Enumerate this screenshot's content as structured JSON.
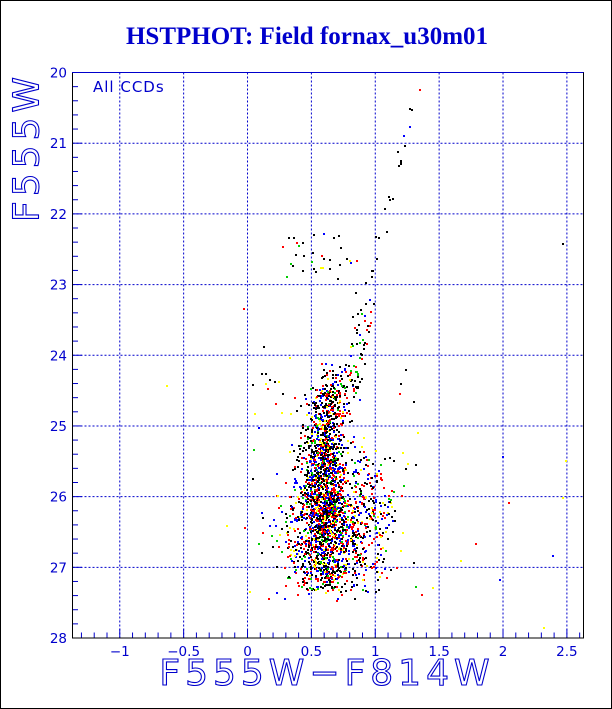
{
  "window": {
    "background": "#ffffff",
    "border_color": "#000000"
  },
  "title": {
    "text": "HSTPHOT: Field fornax_u30m01",
    "color": "#0000cc"
  },
  "annotation": {
    "text": "All CCDs"
  },
  "axes": {
    "accent_color": "#0000cc",
    "frame_color": "#000000",
    "grid_style": "dashed",
    "x": {
      "label": "F555W−F814W",
      "lim": [
        -1.37,
        2.63
      ],
      "major_values": [
        -1,
        -0.5,
        0,
        0.5,
        1,
        1.5,
        2,
        2.5
      ],
      "major_labels": [
        "−1",
        "−0.5",
        "0",
        "0.5",
        "1",
        "1.5",
        "2",
        "2.5"
      ],
      "minor_step": 0.1
    },
    "y": {
      "label": "F555W",
      "lim": [
        20,
        28
      ],
      "inverted": true,
      "major_values": [
        20,
        21,
        22,
        23,
        24,
        25,
        26,
        27,
        28
      ],
      "major_labels": [
        "20",
        "21",
        "22",
        "23",
        "24",
        "25",
        "26",
        "27",
        "28"
      ],
      "minor_step": 0.2
    }
  },
  "chart_data": {
    "type": "scatter",
    "title": "HSTPHOT: Field fornax_u30m01",
    "xlabel": "F555W-F814W",
    "ylabel": "F555W",
    "xlim": [
      -1.37,
      2.63
    ],
    "ylim": [
      28,
      20
    ],
    "grid": true,
    "legend": "none",
    "marker": "2px square",
    "approx_point_count": 2700,
    "palette": [
      "#000000",
      "#ff0000",
      "#0000ff",
      "#00cc00",
      "#ffff00"
    ],
    "seed": 20,
    "clusters": [
      {
        "name": "rgb-tip",
        "shape": "line",
        "from": [
          1.3,
          20.45
        ],
        "to": [
          0.94,
          23.05
        ],
        "n": 20,
        "jitter": [
          0.02,
          0.06
        ],
        "weights": [
          0.75,
          0.15,
          0.1,
          0,
          0
        ]
      },
      {
        "name": "rgb-band",
        "shape": "line",
        "from": [
          0.93,
          23.15
        ],
        "to": [
          0.82,
          24.55
        ],
        "n": 58,
        "jitter": [
          0.035,
          0.05
        ],
        "weights": [
          0.5,
          0.2,
          0.15,
          0.08,
          0.07
        ]
      },
      {
        "name": "clump-hb",
        "shape": "gauss",
        "cx": 0.56,
        "sx": 0.17,
        "cy": 22.62,
        "sy": 0.17,
        "clipx": [
          0.28,
          1.02
        ],
        "clipy": [
          22.25,
          23.18
        ],
        "n": 34,
        "weights": [
          0.6,
          0.15,
          0.12,
          0.08,
          0.05
        ]
      },
      {
        "name": "faint-blue-arm",
        "shape": "line",
        "from": [
          0.1,
          24.15
        ],
        "to": [
          0.42,
          25.05
        ],
        "n": 14,
        "jitter": [
          0.05,
          0.08
        ],
        "weights": [
          0.6,
          0.2,
          0,
          0,
          0.2
        ]
      },
      {
        "name": "cloud-spine",
        "shape": "gauss",
        "cx": 0.6,
        "sx": 0.075,
        "cy": 25.9,
        "sy": 0.8,
        "clipx": [
          0.3,
          1.0
        ],
        "clipy": [
          24.45,
          27.35
        ],
        "n": 1250,
        "weights": [
          0.42,
          0.23,
          0.2,
          0.07,
          0.08
        ]
      },
      {
        "name": "cloud-broad",
        "shape": "gauss",
        "cx": 0.7,
        "sx": 0.17,
        "cy": 26.4,
        "sy": 0.55,
        "clipx": [
          0.2,
          1.3
        ],
        "clipy": [
          24.9,
          27.45
        ],
        "n": 780,
        "weights": [
          0.3,
          0.28,
          0.22,
          0.1,
          0.1
        ]
      },
      {
        "name": "cloud-taper",
        "shape": "gauss",
        "cx": 0.67,
        "sx": 0.07,
        "cy": 24.6,
        "sy": 0.28,
        "clipx": [
          0.45,
          0.95
        ],
        "clipy": [
          24.1,
          25.1
        ],
        "n": 160,
        "weights": [
          0.55,
          0.2,
          0.15,
          0.05,
          0.05
        ]
      },
      {
        "name": "cloud-right",
        "shape": "gauss",
        "cx": 0.97,
        "sx": 0.13,
        "cy": 26.3,
        "sy": 0.5,
        "clipx": [
          0.82,
          1.45
        ],
        "clipy": [
          25.1,
          27.4
        ],
        "n": 130,
        "weights": [
          0.35,
          0.25,
          0.2,
          0.1,
          0.1
        ]
      },
      {
        "name": "cloud-left",
        "shape": "gauss",
        "cx": 0.4,
        "sx": 0.09,
        "cy": 26.55,
        "sy": 0.45,
        "clipx": [
          0.1,
          0.55
        ],
        "clipy": [
          25.3,
          27.4
        ],
        "n": 120,
        "weights": [
          0.3,
          0.25,
          0.2,
          0.12,
          0.13
        ]
      },
      {
        "name": "halo",
        "shape": "uniform",
        "x": [
          0.0,
          1.5
        ],
        "y": [
          24.4,
          27.5
        ],
        "n": 40,
        "weights": [
          0.3,
          0.2,
          0.2,
          0.15,
          0.15
        ]
      }
    ],
    "outliers": [
      [
        1.35,
        20.25,
        1
      ],
      [
        1.27,
        20.52,
        0
      ],
      [
        2.47,
        22.42,
        0
      ],
      [
        -0.63,
        24.44,
        4
      ],
      [
        0.04,
        25.75,
        0
      ],
      [
        0.12,
        26.3,
        0
      ],
      [
        -0.16,
        26.42,
        4
      ],
      [
        -0.02,
        26.44,
        1
      ],
      [
        0.12,
        26.52,
        1
      ],
      [
        0.09,
        26.67,
        3
      ],
      [
        0.19,
        26.56,
        3
      ],
      [
        1.24,
        25.61,
        0
      ],
      [
        2.0,
        25.44,
        2
      ],
      [
        2.49,
        25.5,
        4
      ],
      [
        2.05,
        26.09,
        1
      ],
      [
        2.47,
        26.02,
        4
      ],
      [
        1.79,
        26.67,
        1
      ],
      [
        1.67,
        26.91,
        4
      ],
      [
        2.39,
        26.84,
        2
      ],
      [
        1.98,
        27.18,
        2
      ],
      [
        1.32,
        27.28,
        3
      ],
      [
        1.45,
        27.29,
        4
      ],
      [
        2.32,
        27.86,
        4
      ],
      [
        1.24,
        24.21,
        0
      ],
      [
        -0.03,
        23.35,
        1
      ],
      [
        0.13,
        23.89,
        0
      ],
      [
        0.33,
        24.04,
        4
      ]
    ]
  }
}
